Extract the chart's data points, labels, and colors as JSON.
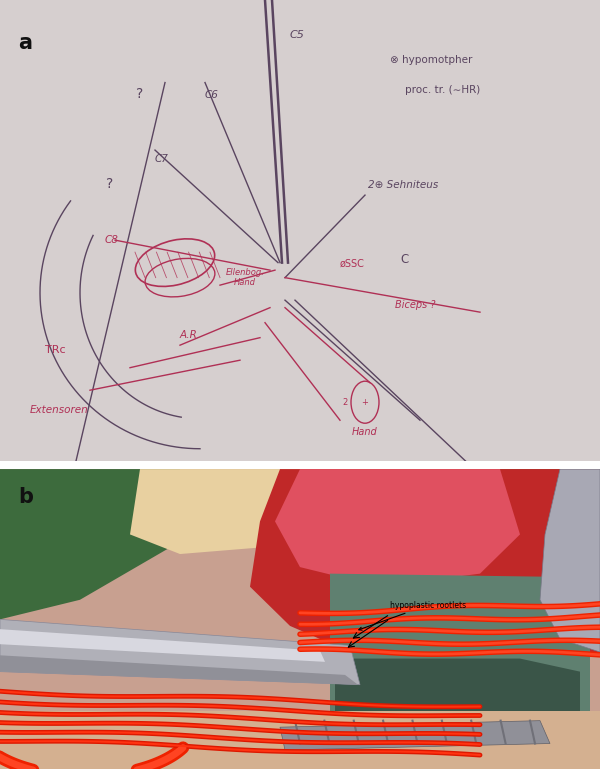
{
  "fig_width": 6.0,
  "fig_height": 7.69,
  "dpi": 100,
  "panel_a": {
    "label": "a",
    "bg_color": "#d4cece",
    "sketch_color_dark": "#5a4560",
    "sketch_color_red": "#b03055",
    "label_color": "#111111"
  },
  "panel_b": {
    "label": "b",
    "annotation_text": "hypoplastic rootlets",
    "label_color": "#111111"
  },
  "separator_color": "#e8e8e8",
  "label_fontsize": 15
}
